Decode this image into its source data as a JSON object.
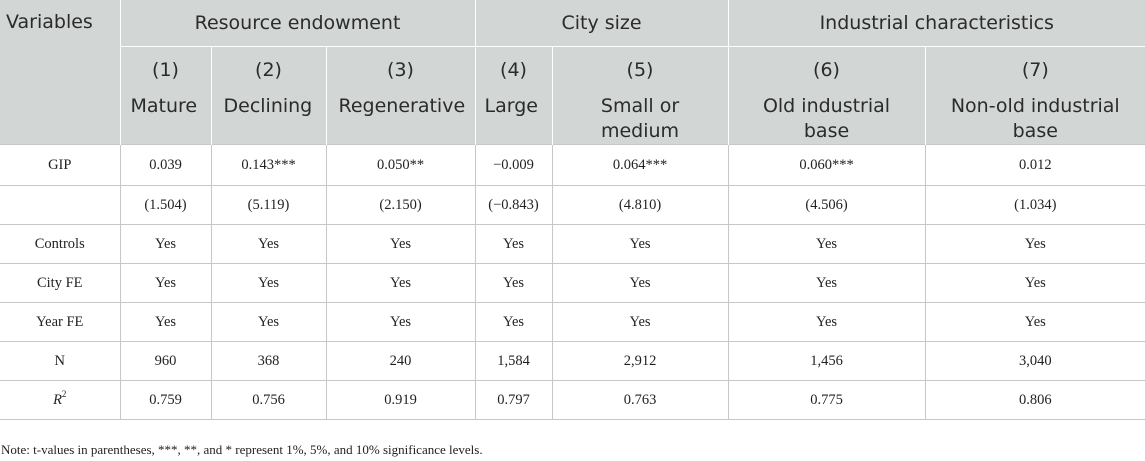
{
  "header": {
    "variables": "Variables",
    "groups": [
      "Resource endowment",
      "City size",
      "Industrial characteristics"
    ],
    "col_numbers": [
      "(1)",
      "(2)",
      "(3)",
      "(4)",
      "(5)",
      "(6)",
      "(7)"
    ],
    "col_labels": [
      [
        "Mature"
      ],
      [
        "Declining"
      ],
      [
        "Regenerative"
      ],
      [
        "Large"
      ],
      [
        "Small or",
        "medium"
      ],
      [
        "Old industrial",
        "base"
      ],
      [
        "Non-old industrial",
        "base"
      ]
    ]
  },
  "rows": [
    {
      "label": "GIP",
      "cells": [
        "0.039",
        "0.143***",
        "0.050**",
        "−0.009",
        "0.064***",
        "0.060***",
        "0.012"
      ]
    },
    {
      "label": "",
      "cells": [
        "(1.504)",
        "(5.119)",
        "(2.150)",
        "(−0.843)",
        "(4.810)",
        "(4.506)",
        "(1.034)"
      ]
    },
    {
      "label": "Controls",
      "cells": [
        "Yes",
        "Yes",
        "Yes",
        "Yes",
        "Yes",
        "Yes",
        "Yes"
      ]
    },
    {
      "label": "City FE",
      "cells": [
        "Yes",
        "Yes",
        "Yes",
        "Yes",
        "Yes",
        "Yes",
        "Yes"
      ]
    },
    {
      "label": "Year FE",
      "cells": [
        "Yes",
        "Yes",
        "Yes",
        "Yes",
        "Yes",
        "Yes",
        "Yes"
      ]
    },
    {
      "label": "N",
      "cells": [
        "960",
        "368",
        "240",
        "1,584",
        "2,912",
        "1,456",
        "3,040"
      ]
    },
    {
      "label": "R",
      "label_sup": "2",
      "cells": [
        "0.759",
        "0.756",
        "0.919",
        "0.797",
        "0.763",
        "0.775",
        "0.806"
      ]
    }
  ],
  "note": "Note: t-values in parentheses, ***, **, and * represent 1%, 5%, and 10% significance levels."
}
